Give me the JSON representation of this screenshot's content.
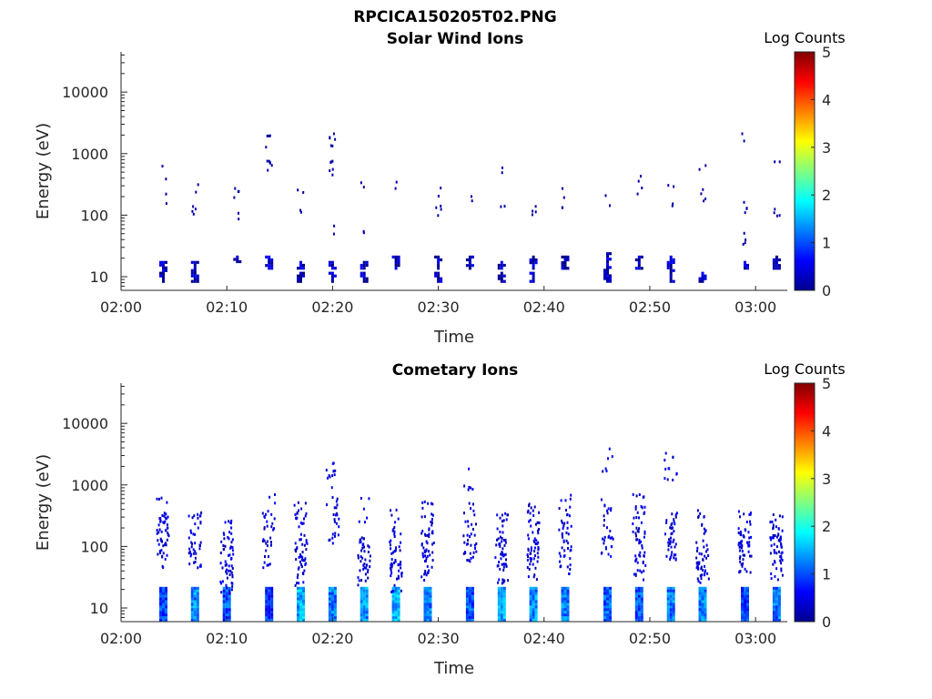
{
  "figure": {
    "title": "RPCICA150205T02.PNG"
  },
  "chart_data": [
    {
      "type": "heatmap",
      "title": "Solar Wind Ions",
      "xlabel": "Time",
      "ylabel": "Energy (eV)",
      "y_scale": "log",
      "ylim": [
        6,
        45000
      ],
      "xlim": [
        "02:00",
        "03:03"
      ],
      "x_ticks": [
        "02:00",
        "02:10",
        "02:20",
        "02:30",
        "02:40",
        "02:50",
        "03:00"
      ],
      "y_ticks": [
        "10",
        "100",
        "1000",
        "10000"
      ],
      "colorbar": {
        "label": "Log Counts",
        "range": [
          0,
          5
        ],
        "ticks": [
          "0",
          "1",
          "2",
          "3",
          "4",
          "5"
        ],
        "colormap": "jet"
      },
      "sweeps": [
        {
          "t": "02:04",
          "lows": [
            [
              8,
              18,
              0.3
            ]
          ],
          "highs": [
            [
              170,
              1
            ],
            [
              500,
              1
            ]
          ]
        },
        {
          "t": "02:07",
          "lows": [
            [
              8,
              18,
              0.3
            ]
          ],
          "highs": [
            [
              110,
              2
            ],
            [
              250,
              1
            ]
          ]
        },
        {
          "t": "02:11",
          "lows": [
            [
              17,
              22,
              0.3
            ]
          ],
          "highs": [
            [
              250,
              2
            ],
            [
              110,
              1
            ]
          ]
        },
        {
          "t": "02:14",
          "lows": [
            [
              13,
              22,
              0.4
            ]
          ],
          "highs": [
            [
              1550,
              2
            ],
            [
              600,
              3
            ]
          ]
        },
        {
          "t": "02:17",
          "lows": [
            [
              13,
              18,
              0.3
            ],
            [
              8,
              12,
              0.3
            ]
          ],
          "highs": [
            [
              200,
              1
            ],
            [
              110,
              1
            ]
          ]
        },
        {
          "t": "02:20",
          "lows": [
            [
              13,
              18,
              0.3
            ],
            [
              8,
              12,
              0.3
            ]
          ],
          "highs": [
            [
              1600,
              3
            ],
            [
              600,
              3
            ],
            [
              60,
              1
            ]
          ]
        },
        {
          "t": "02:23",
          "lows": [
            [
              13,
              18,
              0.3
            ],
            [
              8,
              12,
              0.3
            ]
          ],
          "highs": [
            [
              300,
              1
            ],
            [
              45,
              1
            ]
          ]
        },
        {
          "t": "02:26",
          "lows": [
            [
              13,
              22,
              0.3
            ]
          ],
          "highs": [
            [
              320,
              1
            ]
          ]
        },
        {
          "t": "02:30",
          "lows": [
            [
              13,
              22,
              0.3
            ],
            [
              8,
              12,
              0.3
            ]
          ],
          "highs": [
            [
              120,
              2
            ],
            [
              250,
              1
            ]
          ]
        },
        {
          "t": "02:33",
          "lows": [
            [
              13,
              22,
              0.3
            ]
          ],
          "highs": [
            [
              220,
              1
            ]
          ]
        },
        {
          "t": "02:36",
          "lows": [
            [
              13,
              18,
              0.3
            ],
            [
              8,
              12,
              0.3
            ]
          ],
          "highs": [
            [
              160,
              1
            ],
            [
              650,
              1
            ]
          ]
        },
        {
          "t": "02:39",
          "lows": [
            [
              13,
              22,
              0.3
            ],
            [
              8,
              12,
              0.3
            ]
          ],
          "highs": [
            [
              120,
              2
            ]
          ]
        },
        {
          "t": "02:42",
          "lows": [
            [
              13,
              22,
              0.3
            ]
          ],
          "highs": [
            [
              250,
              1
            ],
            [
              140,
              1
            ]
          ]
        },
        {
          "t": "02:46",
          "lows": [
            [
              8,
              25,
              0.3
            ]
          ],
          "highs": [
            [
              160,
              1
            ]
          ]
        },
        {
          "t": "02:49",
          "lows": [
            [
              13,
              22,
              0.3
            ]
          ],
          "highs": [
            [
              220,
              1
            ],
            [
              400,
              1
            ]
          ]
        },
        {
          "t": "02:52",
          "lows": [
            [
              8,
              22,
              0.3
            ]
          ],
          "highs": [
            [
              240,
              1
            ],
            [
              140,
              1
            ]
          ]
        },
        {
          "t": "02:55",
          "lows": [
            [
              8,
              12,
              0.3
            ]
          ],
          "highs": [
            [
              200,
              2
            ],
            [
              600,
              1
            ]
          ]
        },
        {
          "t": "02:59",
          "lows": [
            [
              13,
              18,
              0.3
            ]
          ],
          "highs": [
            [
              130,
              2
            ],
            [
              40,
              2
            ],
            [
              2000,
              1
            ]
          ]
        },
        {
          "t": "03:02",
          "lows": [
            [
              13,
              22,
              0.3
            ]
          ],
          "highs": [
            [
              120,
              2
            ],
            [
              600,
              1
            ]
          ]
        }
      ]
    },
    {
      "type": "heatmap",
      "title": "Cometary Ions",
      "xlabel": "Time",
      "ylabel": "Energy (eV)",
      "y_scale": "log",
      "ylim": [
        6,
        45000
      ],
      "xlim": [
        "02:00",
        "03:03"
      ],
      "x_ticks": [
        "02:00",
        "02:10",
        "02:20",
        "02:30",
        "02:40",
        "02:50",
        "03:00"
      ],
      "y_ticks": [
        "10",
        "100",
        "1000",
        "10000"
      ],
      "colorbar": {
        "label": "Log Counts",
        "range": [
          0,
          5
        ],
        "ticks": [
          "0",
          "1",
          "2",
          "3",
          "4",
          "5"
        ],
        "colormap": "jet"
      },
      "sweeps": [
        {
          "t": "02:04",
          "lows": [
            [
              6,
              22,
              1.0
            ]
          ],
          "highs": [
            [
              180,
              4
            ],
            [
              80,
              3
            ],
            [
              350,
              2
            ]
          ]
        },
        {
          "t": "02:07",
          "lows": [
            [
              6,
              22,
              1.3
            ]
          ],
          "highs": [
            [
              80,
              4
            ],
            [
              200,
              3
            ]
          ]
        },
        {
          "t": "02:10",
          "lows": [
            [
              6,
              22,
              1.0
            ]
          ],
          "highs": [
            [
              60,
              4
            ],
            [
              160,
              3
            ],
            [
              30,
              3
            ]
          ]
        },
        {
          "t": "02:14",
          "lows": [
            [
              6,
              22,
              0.8
            ]
          ],
          "highs": [
            [
              80,
              3
            ],
            [
              250,
              2
            ],
            [
              450,
              1
            ]
          ]
        },
        {
          "t": "02:17",
          "lows": [
            [
              6,
              22,
              1.5
            ]
          ],
          "highs": [
            [
              90,
              4
            ],
            [
              300,
              3
            ],
            [
              40,
              3
            ]
          ]
        },
        {
          "t": "02:20",
          "lows": [
            [
              6,
              22,
              1.2
            ]
          ],
          "highs": [
            [
              1600,
              2
            ],
            [
              450,
              2
            ],
            [
              200,
              2
            ]
          ]
        },
        {
          "t": "02:23",
          "lows": [
            [
              6,
              22,
              1.3
            ]
          ],
          "highs": [
            [
              80,
              4
            ],
            [
              40,
              3
            ],
            [
              350,
              1
            ]
          ]
        },
        {
          "t": "02:26",
          "lows": [
            [
              6,
              22,
              1.5
            ]
          ],
          "highs": [
            [
              70,
              4
            ],
            [
              250,
              2
            ],
            [
              30,
              3
            ]
          ]
        },
        {
          "t": "02:29",
          "lows": [
            [
              6,
              22,
              1.2
            ]
          ],
          "highs": [
            [
              100,
              4
            ],
            [
              300,
              3
            ],
            [
              50,
              3
            ]
          ]
        },
        {
          "t": "02:33",
          "lows": [
            [
              6,
              22,
              1.0
            ]
          ],
          "highs": [
            [
              90,
              4
            ],
            [
              300,
              2
            ],
            [
              1200,
              1
            ]
          ]
        },
        {
          "t": "02:36",
          "lows": [
            [
              6,
              22,
              1.4
            ]
          ],
          "highs": [
            [
              80,
              4
            ],
            [
              220,
              3
            ],
            [
              40,
              3
            ]
          ]
        },
        {
          "t": "02:39",
          "lows": [
            [
              6,
              22,
              1.3
            ]
          ],
          "highs": [
            [
              100,
              4
            ],
            [
              300,
              3
            ],
            [
              50,
              3
            ]
          ]
        },
        {
          "t": "02:42",
          "lows": [
            [
              6,
              22,
              1.2
            ]
          ],
          "highs": [
            [
              150,
              3
            ],
            [
              400,
              2
            ],
            [
              60,
              3
            ]
          ]
        },
        {
          "t": "02:46",
          "lows": [
            [
              6,
              22,
              1.1
            ]
          ],
          "highs": [
            [
              100,
              3
            ],
            [
              350,
              2
            ],
            [
              2400,
              1
            ]
          ]
        },
        {
          "t": "02:49",
          "lows": [
            [
              6,
              22,
              1.0
            ]
          ],
          "highs": [
            [
              120,
              4
            ],
            [
              400,
              3
            ],
            [
              50,
              3
            ]
          ]
        },
        {
          "t": "02:52",
          "lows": [
            [
              6,
              22,
              1.2
            ]
          ],
          "highs": [
            [
              90,
              4
            ],
            [
              200,
              3
            ],
            [
              2000,
              2
            ]
          ]
        },
        {
          "t": "02:55",
          "lows": [
            [
              6,
              22,
              1.2
            ]
          ],
          "highs": [
            [
              70,
              4
            ],
            [
              250,
              2
            ],
            [
              40,
              3
            ]
          ]
        },
        {
          "t": "02:59",
          "lows": [
            [
              6,
              22,
              1.0
            ]
          ],
          "highs": [
            [
              120,
              4
            ],
            [
              60,
              4
            ],
            [
              250,
              2
            ]
          ]
        },
        {
          "t": "03:02",
          "lows": [
            [
              6,
              22,
              1.2
            ]
          ],
          "highs": [
            [
              90,
              4
            ],
            [
              200,
              3
            ],
            [
              50,
              3
            ]
          ]
        }
      ]
    }
  ]
}
